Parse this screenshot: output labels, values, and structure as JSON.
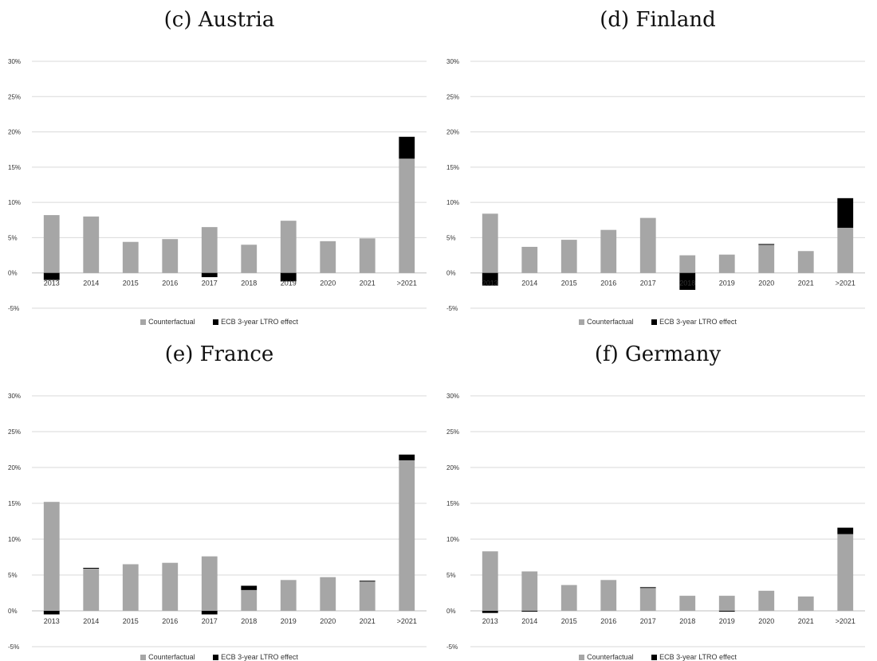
{
  "colors": {
    "counterfactual": "#a6a6a6",
    "effect": "#000000",
    "grid": "#d9d9d9",
    "axis": "#bfbfbf",
    "text": "#333333"
  },
  "legend": {
    "counterfactual": "Counterfactual",
    "effect": "ECB 3-year LTRO effect"
  },
  "chart_data": [
    {
      "type": "bar",
      "title": "(c) Austria",
      "categories": [
        "2013",
        "2014",
        "2015",
        "2016",
        "2017",
        "2018",
        "2019",
        "2020",
        "2021",
        ">2021"
      ],
      "yticks": [
        "30%",
        "25%",
        "20%",
        "15%",
        "10%",
        "5%",
        "0%",
        "-5%"
      ],
      "ylim": [
        -5,
        30
      ],
      "stacked": true,
      "legend_position": "bottom",
      "grid": true,
      "series": [
        {
          "name": "Counterfactual",
          "values": [
            8.2,
            8.0,
            4.4,
            4.8,
            6.5,
            4.0,
            7.4,
            4.5,
            4.9,
            16.2
          ]
        },
        {
          "name": "ECB 3-year LTRO effect",
          "values": [
            -1.0,
            0,
            0,
            0,
            -0.6,
            0,
            -1.2,
            0,
            0,
            3.1
          ]
        }
      ]
    },
    {
      "type": "bar",
      "title": "(d) Finland",
      "categories": [
        "2013",
        "2014",
        "2015",
        "2016",
        "2017",
        "2018",
        "2019",
        "2020",
        "2021",
        ">2021"
      ],
      "yticks": [
        "30%",
        "25%",
        "20%",
        "15%",
        "10%",
        "5%",
        "0%",
        "-5%"
      ],
      "ylim": [
        -5,
        30
      ],
      "stacked": true,
      "legend_position": "bottom",
      "grid": true,
      "series": [
        {
          "name": "Counterfactual",
          "values": [
            8.4,
            3.7,
            4.7,
            6.1,
            7.8,
            2.5,
            2.6,
            4.0,
            3.1,
            6.4
          ]
        },
        {
          "name": "ECB 3-year LTRO effect",
          "values": [
            -1.8,
            0,
            0,
            0,
            0,
            -2.4,
            0,
            0.1,
            0,
            4.2
          ]
        }
      ]
    },
    {
      "type": "bar",
      "title": "(e) France",
      "categories": [
        "2013",
        "2014",
        "2015",
        "2016",
        "2017",
        "2018",
        "2019",
        "2020",
        "2021",
        ">2021"
      ],
      "yticks": [
        "30%",
        "25%",
        "20%",
        "15%",
        "10%",
        "5%",
        "0%",
        "-5%"
      ],
      "ylim": [
        -5,
        30
      ],
      "stacked": true,
      "legend_position": "bottom",
      "grid": true,
      "series": [
        {
          "name": "Counterfactual",
          "values": [
            15.2,
            5.9,
            6.5,
            6.7,
            7.6,
            2.9,
            4.3,
            4.7,
            4.1,
            21.0
          ]
        },
        {
          "name": "ECB 3-year LTRO effect",
          "values": [
            -0.5,
            0.1,
            0,
            0,
            -0.5,
            0.6,
            0,
            0,
            0.1,
            0.8
          ]
        }
      ]
    },
    {
      "type": "bar",
      "title": "(f) Germany",
      "categories": [
        "2013",
        "2014",
        "2015",
        "2016",
        "2017",
        "2018",
        "2019",
        "2020",
        "2021",
        ">2021"
      ],
      "yticks": [
        "30%",
        "25%",
        "20%",
        "15%",
        "10%",
        "5%",
        "0%",
        "-5%"
      ],
      "ylim": [
        -5,
        30
      ],
      "stacked": true,
      "legend_position": "bottom",
      "grid": true,
      "series": [
        {
          "name": "Counterfactual",
          "values": [
            8.3,
            5.5,
            3.6,
            4.3,
            3.2,
            2.1,
            2.1,
            2.8,
            2.0,
            10.7
          ]
        },
        {
          "name": "ECB 3-year LTRO effect",
          "values": [
            -0.3,
            -0.1,
            0,
            0,
            0.1,
            0,
            -0.1,
            0,
            0,
            0.9
          ]
        }
      ]
    }
  ]
}
